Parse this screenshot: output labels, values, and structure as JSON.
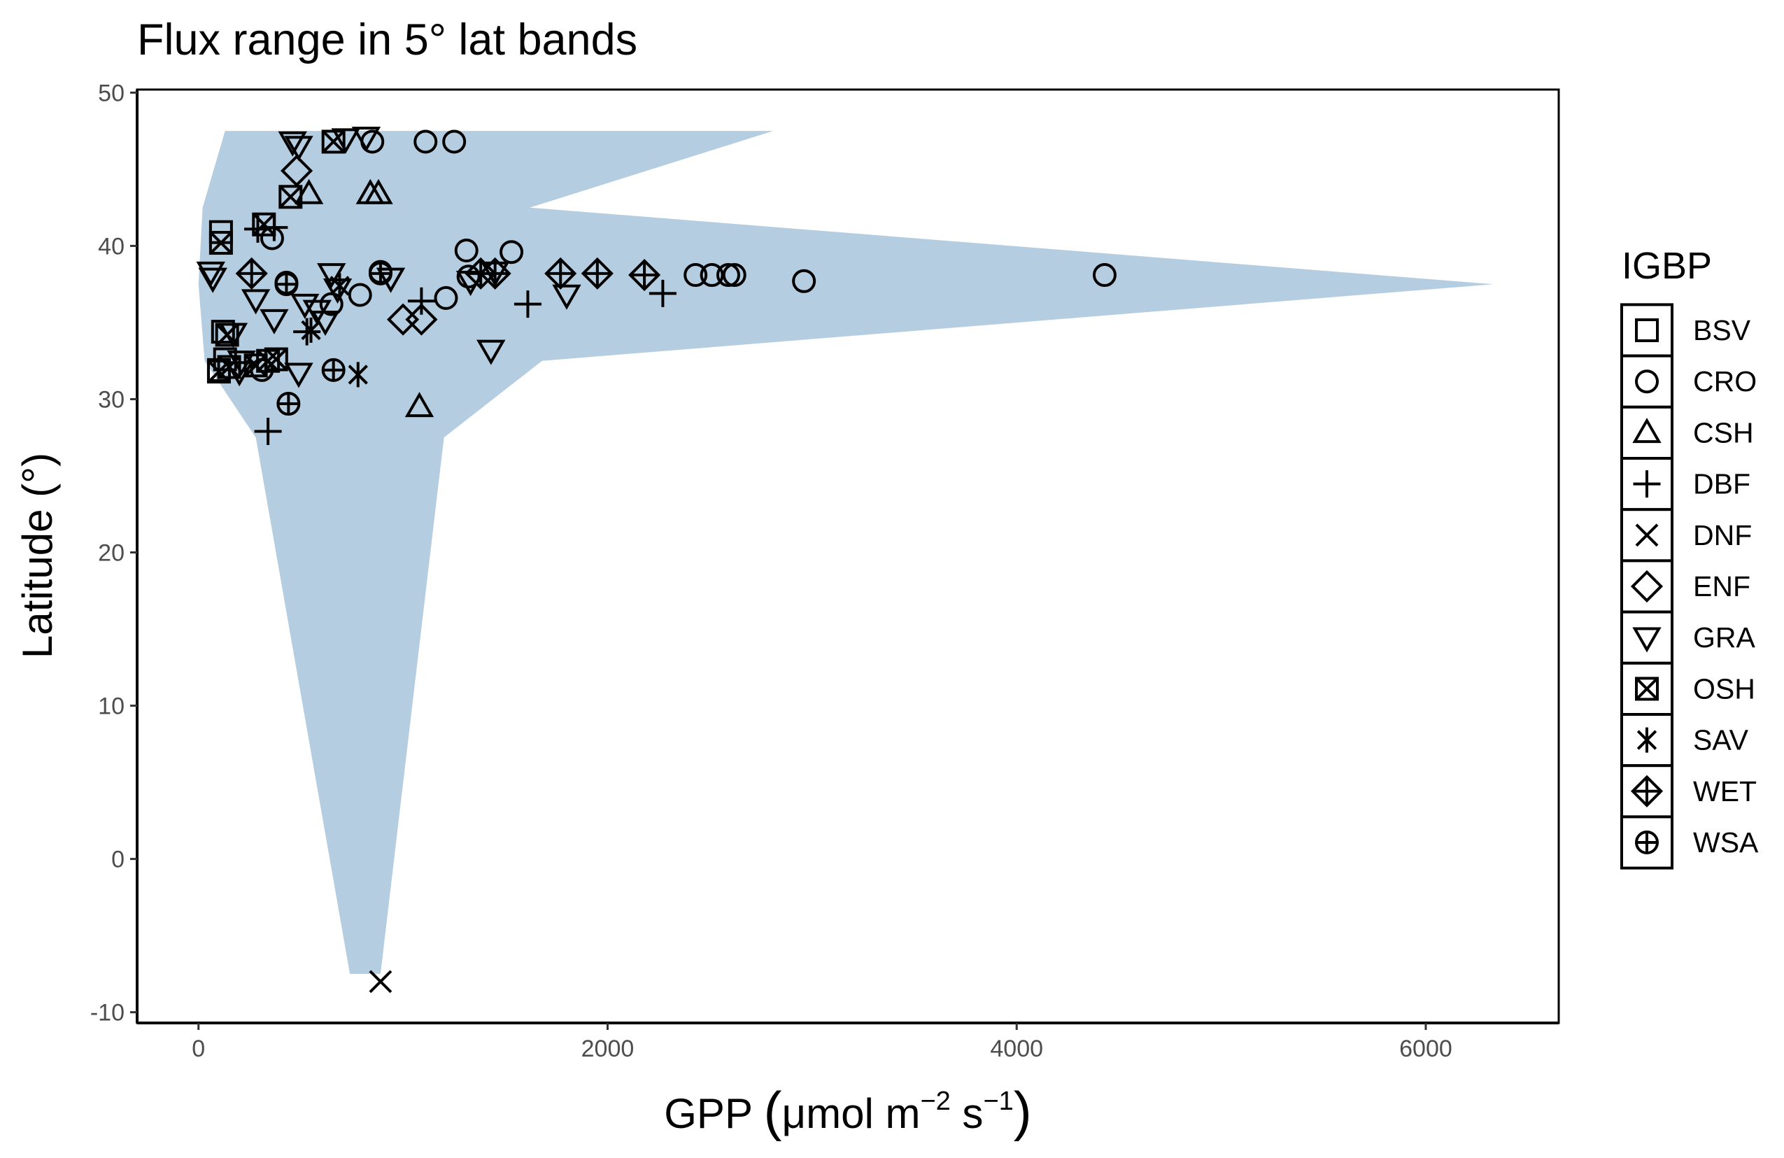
{
  "chart_data": {
    "type": "scatter",
    "title": "Flux range in 5° lat bands",
    "xlabel": {
      "base": "GPP ",
      "unit_main": "μmol m",
      "unit_exp1": "−2",
      "unit_mid": " s",
      "unit_exp2": "−1"
    },
    "ylabel": "Latitude (°)",
    "xlim": [
      -300,
      6650
    ],
    "ylim": [
      -10.7,
      50.2
    ],
    "x_ticks": [
      0,
      2000,
      4000,
      6000
    ],
    "y_ticks": [
      -10,
      0,
      10,
      20,
      30,
      40,
      50
    ],
    "x_tick_labels": [
      "0",
      "2000",
      "4000",
      "6000"
    ],
    "y_tick_labels": [
      "-10",
      "0",
      "10",
      "20",
      "30",
      "40",
      "50"
    ],
    "grid": false,
    "legend": {
      "title": "IGBP",
      "placement": "right",
      "entries": [
        "BSV",
        "CRO",
        "CSH",
        "DBF",
        "DNF",
        "ENF",
        "GRA",
        "OSH",
        "SAV",
        "WET",
        "WSA"
      ]
    },
    "ribbon": {
      "fill": "#b5cde0",
      "polygon": [
        [
          130,
          47.5
        ],
        [
          2810,
          47.5
        ],
        [
          1620,
          42.5
        ],
        [
          6330,
          37.5
        ],
        [
          1680,
          32.5
        ],
        [
          1200,
          27.5
        ],
        [
          890,
          -7.5
        ],
        [
          740,
          -7.5
        ],
        [
          280,
          27.5
        ],
        [
          30,
          32.5
        ],
        [
          0,
          37.5
        ],
        [
          20,
          42.5
        ]
      ]
    },
    "series": [
      {
        "name": "BSV",
        "points": [
          [
            110,
            40.9
          ],
          [
            120,
            34.4
          ],
          [
            130,
            32.6
          ],
          [
            100,
            31.9
          ]
        ]
      },
      {
        "name": "CRO",
        "points": [
          [
            850,
            46.8
          ],
          [
            1110,
            46.8
          ],
          [
            1250,
            46.8
          ],
          [
            360,
            40.5
          ],
          [
            430,
            37.6
          ],
          [
            1310,
            39.7
          ],
          [
            1530,
            39.6
          ],
          [
            1320,
            38.0
          ],
          [
            2430,
            38.1
          ],
          [
            2510,
            38.1
          ],
          [
            2590,
            38.1
          ],
          [
            2620,
            38.1
          ],
          [
            2960,
            37.7
          ],
          [
            4430,
            38.1
          ],
          [
            890,
            38.3
          ],
          [
            790,
            36.8
          ],
          [
            650,
            36.2
          ],
          [
            1210,
            36.6
          ],
          [
            310,
            31.9
          ]
        ]
      },
      {
        "name": "CSH",
        "points": [
          [
            540,
            43.4
          ],
          [
            840,
            43.4
          ],
          [
            880,
            43.4
          ],
          [
            1080,
            29.5
          ]
        ]
      },
      {
        "name": "DBF",
        "points": [
          [
            290,
            41.1
          ],
          [
            370,
            41.2
          ],
          [
            1090,
            36.4
          ],
          [
            1610,
            36.2
          ],
          [
            2270,
            36.9
          ],
          [
            530,
            34.4
          ],
          [
            340,
            27.9
          ]
        ]
      },
      {
        "name": "DNF",
        "points": [
          [
            890,
            -8.0
          ]
        ]
      },
      {
        "name": "ENF",
        "points": [
          [
            480,
            44.9
          ],
          [
            1000,
            35.2
          ],
          [
            1090,
            35.2
          ]
        ]
      },
      {
        "name": "GRA",
        "points": [
          [
            460,
            46.8
          ],
          [
            490,
            46.5
          ],
          [
            720,
            47.0
          ],
          [
            820,
            47.1
          ],
          [
            60,
            38.3
          ],
          [
            70,
            37.9
          ],
          [
            650,
            38.2
          ],
          [
            940,
            37.9
          ],
          [
            1330,
            37.7
          ],
          [
            1450,
            38.3
          ],
          [
            1800,
            36.8
          ],
          [
            1430,
            33.2
          ],
          [
            280,
            36.5
          ],
          [
            370,
            35.2
          ],
          [
            520,
            36.2
          ],
          [
            580,
            35.8
          ],
          [
            620,
            35.1
          ],
          [
            680,
            37.2
          ],
          [
            200,
            31.8
          ],
          [
            490,
            31.7
          ],
          [
            170,
            34.3
          ],
          [
            210,
            32.5
          ]
        ]
      },
      {
        "name": "OSH",
        "points": [
          [
            660,
            46.8
          ],
          [
            320,
            41.4
          ],
          [
            450,
            43.2
          ],
          [
            110,
            40.2
          ],
          [
            140,
            34.2
          ],
          [
            100,
            31.8
          ],
          [
            150,
            32.1
          ],
          [
            280,
            32.2
          ],
          [
            340,
            32.5
          ],
          [
            380,
            32.6
          ]
        ]
      },
      {
        "name": "SAV",
        "points": [
          [
            780,
            31.6
          ],
          [
            550,
            34.5
          ],
          [
            690,
            37.4
          ]
        ]
      },
      {
        "name": "WET",
        "points": [
          [
            260,
            38.2
          ],
          [
            1380,
            38.2
          ],
          [
            1450,
            38.2
          ],
          [
            1770,
            38.2
          ],
          [
            1950,
            38.2
          ],
          [
            2180,
            38.1
          ]
        ]
      },
      {
        "name": "WSA",
        "points": [
          [
            430,
            37.5
          ],
          [
            890,
            38.2
          ],
          [
            440,
            29.7
          ],
          [
            660,
            31.9
          ]
        ]
      }
    ]
  }
}
